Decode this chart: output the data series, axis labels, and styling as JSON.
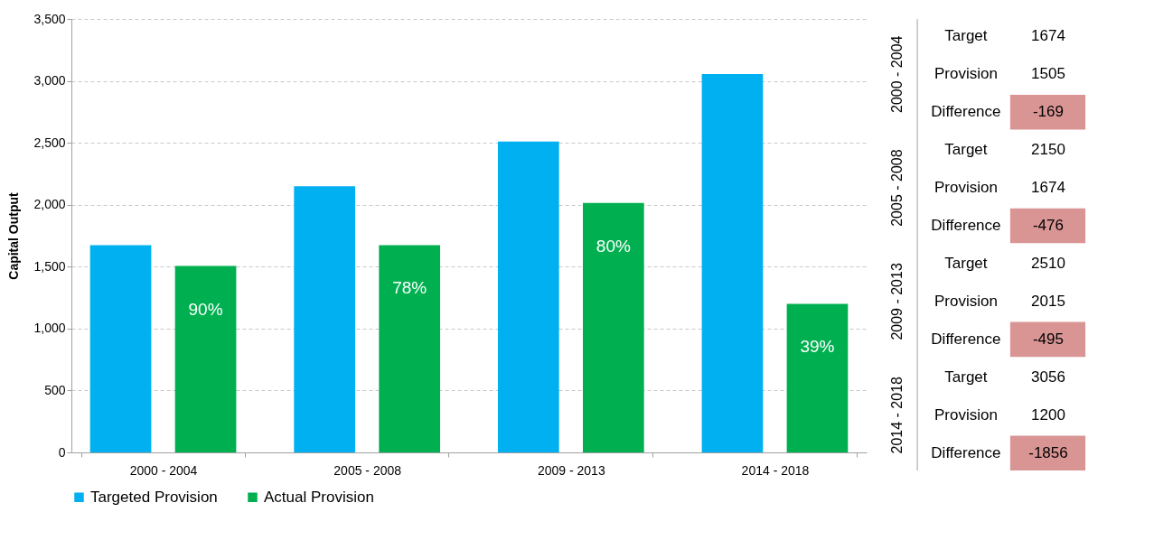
{
  "chart_data": [
    {
      "type": "bar",
      "ylabel": "Capital Output",
      "categories": [
        "2000 - 2004",
        "2005 - 2008",
        "2009 - 2013",
        "2014 - 2018"
      ],
      "series": [
        {
          "name": "Targeted Provision",
          "color": "#00b0f0",
          "values": [
            1674,
            2150,
            2510,
            3056
          ]
        },
        {
          "name": "Actual Provision",
          "color": "#00b050",
          "values": [
            1505,
            1674,
            2015,
            1200
          ]
        }
      ],
      "annotations": [
        "90%",
        "78%",
        "80%",
        "39%"
      ],
      "ylim": [
        0,
        3500
      ],
      "yticks": [
        0,
        {
          "value": 500,
          "label": "500"
        },
        {
          "value": 1000,
          "label": "1,000"
        },
        {
          "value": 1500,
          "label": "1,500"
        },
        {
          "value": 2000,
          "label": "2,000"
        },
        {
          "value": 2500,
          "label": "2,500"
        },
        {
          "value": 3000,
          "label": "3,000"
        },
        {
          "value": 3500,
          "label": "3,500"
        }
      ],
      "grid": "y",
      "legend": "bottom"
    },
    {
      "type": "other",
      "categories": [
        "2000 - 2004",
        "2005 - 2008",
        "2009 - 2013",
        "2014 - 2018"
      ],
      "series": [
        {
          "name": "Target",
          "values": [
            1674,
            2150,
            2510,
            3056
          ]
        },
        {
          "name": "Provision",
          "values": [
            1505,
            1674,
            2015,
            1200
          ]
        },
        {
          "name": "Difference",
          "color": "#d99594",
          "values": [
            -169,
            -476,
            -495,
            -1856
          ]
        }
      ],
      "data_labels": true
    }
  ]
}
